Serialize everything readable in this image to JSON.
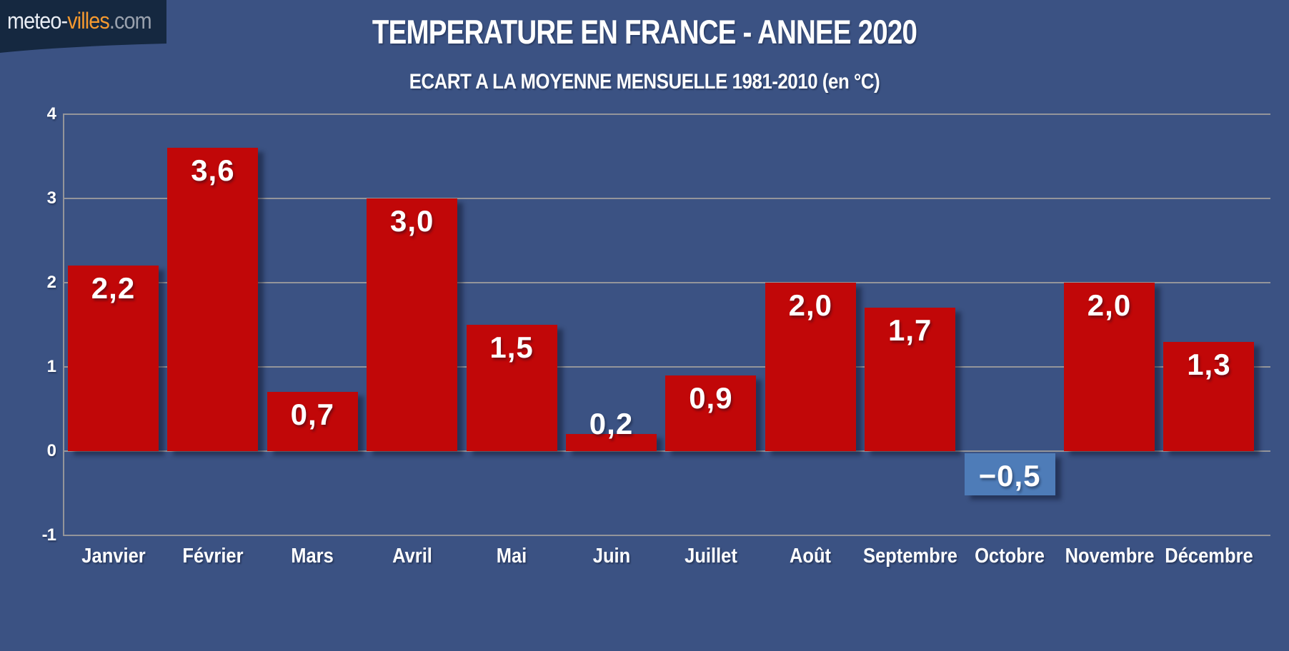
{
  "logo": {
    "part_meteo": "meteo-",
    "part_villes": "villes",
    "part_com": ".com"
  },
  "header": {
    "title": "TEMPERATURE EN FRANCE - ANNEE 2020",
    "subtitle": "ECART A LA MOYENNE MENSUELLE 1981-2010 (en °C)"
  },
  "chart_data": {
    "type": "bar",
    "title": "TEMPERATURE EN FRANCE - ANNEE 2020",
    "subtitle": "ECART A LA MOYENNE MENSUELLE 1981-2010 (en °C)",
    "categories": [
      "Janvier",
      "Février",
      "Mars",
      "Avril",
      "Mai",
      "Juin",
      "Juillet",
      "Août",
      "Septembre",
      "Octobre",
      "Novembre",
      "Décembre"
    ],
    "values": [
      2.2,
      3.6,
      0.7,
      3.0,
      1.5,
      0.2,
      0.9,
      2.0,
      1.7,
      -0.5,
      2.0,
      1.3
    ],
    "value_labels": [
      "2,2",
      "3,6",
      "0,7",
      "3,0",
      "1,5",
      "0,2",
      "0,9",
      "2,0",
      "1,7",
      "−0,5",
      "2,0",
      "1,3"
    ],
    "ylim": [
      -1,
      4
    ],
    "yticks": [
      "4",
      "3",
      "2",
      "1",
      "0",
      "-1"
    ],
    "grid": true,
    "legend": false,
    "xlabel": "",
    "ylabel": "",
    "bar_color_positive": "#c10708",
    "bar_color_negative": "#4e7cb8"
  },
  "colors": {
    "background": "#3b5283",
    "logo_background": "#152840",
    "gridline": "#94959a",
    "text": "#ffffff"
  }
}
